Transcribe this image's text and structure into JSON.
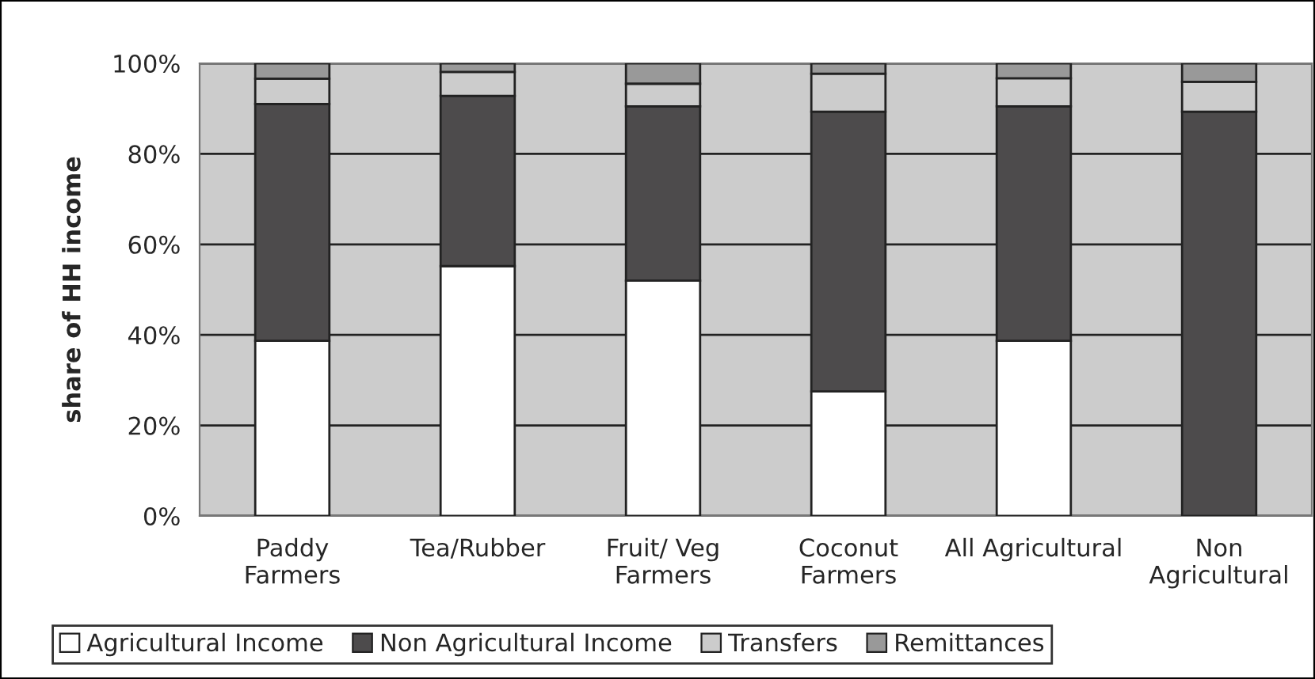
{
  "chart_data": {
    "type": "bar",
    "ylabel": "share of HH income",
    "stacked": true,
    "categories": [
      "Paddy\nFarmers",
      "Tea/Rubber",
      "Fruit/ Veg\nFarmers",
      "Coconut\nFarmers",
      "All Agricultural",
      "Non\nAgricultural"
    ],
    "series": [
      {
        "name": "Agricultural Income",
        "color": "#ffffff",
        "values": [
          38.7,
          55.2,
          52.0,
          27.5,
          38.7,
          0
        ]
      },
      {
        "name": "Non Agricultural Income",
        "color": "#4d4b4c",
        "values": [
          52.3,
          37.6,
          38.5,
          61.8,
          51.8,
          89.3
        ]
      },
      {
        "name": "Transfers",
        "color": "#cccccc",
        "values": [
          5.6,
          5.3,
          5.0,
          8.4,
          6.2,
          6.6
        ]
      },
      {
        "name": "Remittances",
        "color": "#999999",
        "values": [
          3.4,
          1.9,
          4.5,
          2.3,
          3.3,
          4.1
        ]
      }
    ],
    "ylim": [
      0,
      100
    ],
    "yticks": [
      {
        "value": 0,
        "label": "0%"
      },
      {
        "value": 20,
        "label": "20%"
      },
      {
        "value": 40,
        "label": "40%"
      },
      {
        "value": 60,
        "label": "60%"
      },
      {
        "value": 80,
        "label": "80%"
      },
      {
        "value": 100,
        "label": "100%"
      }
    ],
    "grid": "y",
    "legend": "bottom"
  }
}
